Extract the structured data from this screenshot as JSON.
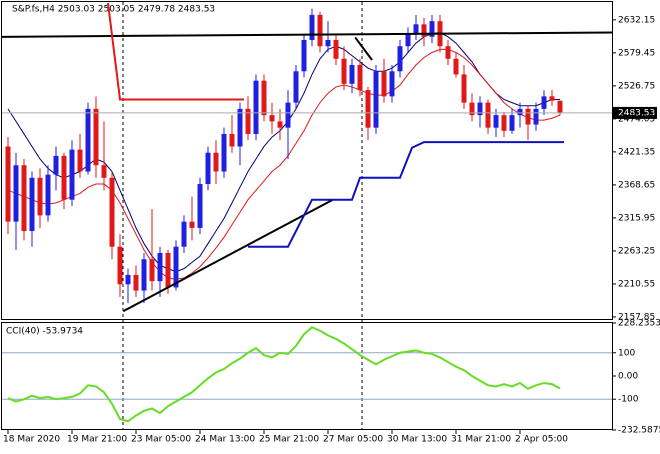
{
  "chart_data": [
    {
      "type": "candlestick",
      "title": "S&P.fs,H4 2503.03 2503.05 2479.78 2483.53",
      "categories": [
        "18 Mar 2020",
        null,
        null,
        null,
        null,
        null,
        null,
        null,
        "19 Mar 21:00",
        null,
        null,
        null,
        null,
        null,
        null,
        null,
        "23 Mar 05:00",
        null,
        null,
        null,
        null,
        null,
        null,
        null,
        "24 Mar 13:00",
        null,
        null,
        null,
        null,
        null,
        null,
        null,
        "25 Mar 21:00",
        null,
        null,
        null,
        null,
        null,
        null,
        null,
        "27 Mar 05:00",
        null,
        null,
        null,
        null,
        null,
        null,
        null,
        "30 Mar 13:00",
        null,
        null,
        null,
        null,
        null,
        null,
        null,
        "31 Mar 21:00",
        null,
        null,
        null,
        null,
        null,
        null,
        null,
        "2 Apr 05:00",
        null,
        null,
        null,
        null,
        null
      ],
      "open": [
        2430,
        2310,
        2400,
        2295,
        2380,
        2320,
        2385,
        2415,
        2345,
        2425,
        2390,
        2490,
        2400,
        2380,
        2270,
        2210,
        2225,
        2200,
        2250,
        2215,
        2260,
        2205,
        2270,
        2310,
        2300,
        2370,
        2420,
        2390,
        2450,
        2430,
        2490,
        2450,
        2535,
        2480,
        2470,
        2460,
        2500,
        2550,
        2600,
        2640,
        2590,
        2600,
        2570,
        2530,
        2560,
        2520,
        2460,
        2550,
        2510,
        2550,
        2590,
        2610,
        2625,
        2605,
        2630,
        2590,
        2570,
        2545,
        2500,
        2480,
        2500,
        2460,
        2480,
        2455,
        2480,
        2490,
        2465,
        2490,
        2510,
        2503.03
      ],
      "high": [
        2445,
        2420,
        2410,
        2390,
        2395,
        2400,
        2430,
        2420,
        2440,
        2450,
        2500,
        2510,
        2470,
        2390,
        2290,
        2235,
        2240,
        2260,
        2330,
        2270,
        2265,
        2280,
        2320,
        2350,
        2380,
        2430,
        2440,
        2460,
        2480,
        2500,
        2510,
        2545,
        2545,
        2500,
        2490,
        2520,
        2560,
        2610,
        2650,
        2645,
        2630,
        2610,
        2590,
        2570,
        2570,
        2525,
        2560,
        2570,
        2560,
        2600,
        2620,
        2640,
        2635,
        2640,
        2640,
        2600,
        2580,
        2560,
        2515,
        2510,
        2505,
        2490,
        2485,
        2490,
        2500,
        2495,
        2500,
        2520,
        2520,
        2503.05
      ],
      "low": [
        2290,
        2265,
        2280,
        2270,
        2300,
        2310,
        2360,
        2330,
        2335,
        2380,
        2385,
        2380,
        2360,
        2250,
        2190,
        2180,
        2190,
        2180,
        2200,
        2190,
        2195,
        2200,
        2260,
        2280,
        2290,
        2360,
        2370,
        2380,
        2420,
        2400,
        2440,
        2440,
        2470,
        2450,
        2440,
        2410,
        2490,
        2540,
        2590,
        2580,
        2580,
        2560,
        2520,
        2515,
        2510,
        2440,
        2450,
        2500,
        2500,
        2540,
        2580,
        2600,
        2590,
        2595,
        2580,
        2560,
        2540,
        2490,
        2470,
        2460,
        2450,
        2445,
        2445,
        2450,
        2460,
        2440,
        2455,
        2480,
        2495,
        2479.78
      ],
      "close": [
        2310,
        2400,
        2295,
        2380,
        2320,
        2385,
        2415,
        2345,
        2425,
        2390,
        2490,
        2400,
        2380,
        2270,
        2210,
        2225,
        2200,
        2250,
        2215,
        2260,
        2205,
        2270,
        2310,
        2300,
        2370,
        2420,
        2390,
        2450,
        2430,
        2490,
        2450,
        2535,
        2480,
        2470,
        2460,
        2500,
        2550,
        2600,
        2640,
        2590,
        2600,
        2570,
        2530,
        2560,
        2520,
        2460,
        2550,
        2510,
        2550,
        2590,
        2610,
        2625,
        2605,
        2630,
        2590,
        2570,
        2545,
        2500,
        2480,
        2500,
        2460,
        2480,
        2455,
        2480,
        2490,
        2465,
        2490,
        2510,
        2503,
        2483.53
      ],
      "up_color": "#2020e0",
      "down_color": "#e01818",
      "series": [
        {
          "color": "#000080",
          "values": [
            2490,
            2470,
            2450,
            2430,
            2410,
            2395,
            2385,
            2380,
            2385,
            2390,
            2400,
            2410,
            2405,
            2390,
            2360,
            2330,
            2300,
            2275,
            2255,
            2240,
            2235,
            2230,
            2235,
            2245,
            2255,
            2275,
            2295,
            2315,
            2340,
            2365,
            2390,
            2410,
            2430,
            2445,
            2455,
            2470,
            2490,
            2515,
            2545,
            2570,
            2585,
            2590,
            2585,
            2575,
            2565,
            2555,
            2550,
            2550,
            2555,
            2565,
            2580,
            2595,
            2605,
            2610,
            2612,
            2605,
            2595,
            2580,
            2565,
            2545,
            2530,
            2515,
            2505,
            2500,
            2495,
            2495,
            2495,
            2500,
            2505,
            2505
          ]
        },
        {
          "color": "#e01818",
          "values": [
            2360,
            2355,
            2350,
            2345,
            2340,
            2338,
            2340,
            2345,
            2350,
            2355,
            2365,
            2370,
            2370,
            2360,
            2340,
            2315,
            2290,
            2265,
            2245,
            2230,
            2220,
            2218,
            2220,
            2228,
            2238,
            2252,
            2268,
            2285,
            2305,
            2325,
            2345,
            2360,
            2375,
            2390,
            2400,
            2415,
            2435,
            2455,
            2480,
            2500,
            2515,
            2525,
            2528,
            2525,
            2520,
            2515,
            2512,
            2512,
            2518,
            2528,
            2545,
            2560,
            2572,
            2580,
            2585,
            2585,
            2580,
            2572,
            2560,
            2545,
            2530,
            2515,
            2500,
            2490,
            2482,
            2476,
            2472,
            2472,
            2475,
            2480
          ]
        }
      ],
      "lines": [
        {
          "color": "#000000",
          "points": [
            [
              -1,
              2605
            ],
            [
              75.5,
              2612
            ]
          ]
        },
        {
          "color": "#000000",
          "points": [
            [
              14.4,
              2167
            ],
            [
              40.6,
              2345
            ]
          ]
        },
        {
          "color": "#000000",
          "points": [
            [
              43.4,
              2604
            ],
            [
              45.5,
              2568
            ]
          ]
        },
        {
          "color": "#e01818",
          "points": [
            [
              12.5,
              2659
            ],
            [
              14,
              2505
            ],
            [
              29.5,
              2505
            ]
          ]
        },
        {
          "color": "#1010c0",
          "points": [
            [
              30,
              2270
            ],
            [
              35,
              2270
            ],
            [
              38,
              2345
            ],
            [
              43,
              2345
            ],
            [
              44,
              2380
            ],
            [
              49,
              2380
            ],
            [
              50.5,
              2428
            ],
            [
              52,
              2437
            ],
            [
              69.5,
              2437
            ]
          ]
        }
      ],
      "last_price": 2483.53,
      "ylim": [
        2153,
        2659
      ],
      "yticks": [
        2632.15,
        2579.45,
        2526.75,
        2474.05,
        2421.35,
        2368.65,
        2315.95,
        2263.25,
        2210.55,
        2157.85
      ]
    },
    {
      "type": "line",
      "title": "CCI(40) -53.9734",
      "color": "#66dd22",
      "values": [
        -95,
        -110,
        -100,
        -85,
        -95,
        -90,
        -100,
        -95,
        -90,
        -75,
        -40,
        -45,
        -70,
        -120,
        -185,
        -195,
        -170,
        -150,
        -140,
        -160,
        -130,
        -110,
        -90,
        -70,
        -40,
        -10,
        15,
        30,
        55,
        75,
        100,
        120,
        90,
        80,
        100,
        95,
        130,
        180,
        210,
        195,
        175,
        160,
        140,
        115,
        90,
        70,
        50,
        70,
        85,
        100,
        105,
        110,
        100,
        95,
        80,
        60,
        40,
        25,
        0,
        -20,
        -40,
        -45,
        -35,
        -45,
        -30,
        -55,
        -40,
        -30,
        -35,
        -53.9734
      ],
      "ylim": [
        -232.5875,
        228.2353
      ],
      "yticks": [
        228.2353,
        100,
        {
          "value": 0,
          "label": "0.00"
        },
        -100,
        -232.5875
      ],
      "levels": [
        100,
        -100
      ]
    }
  ]
}
